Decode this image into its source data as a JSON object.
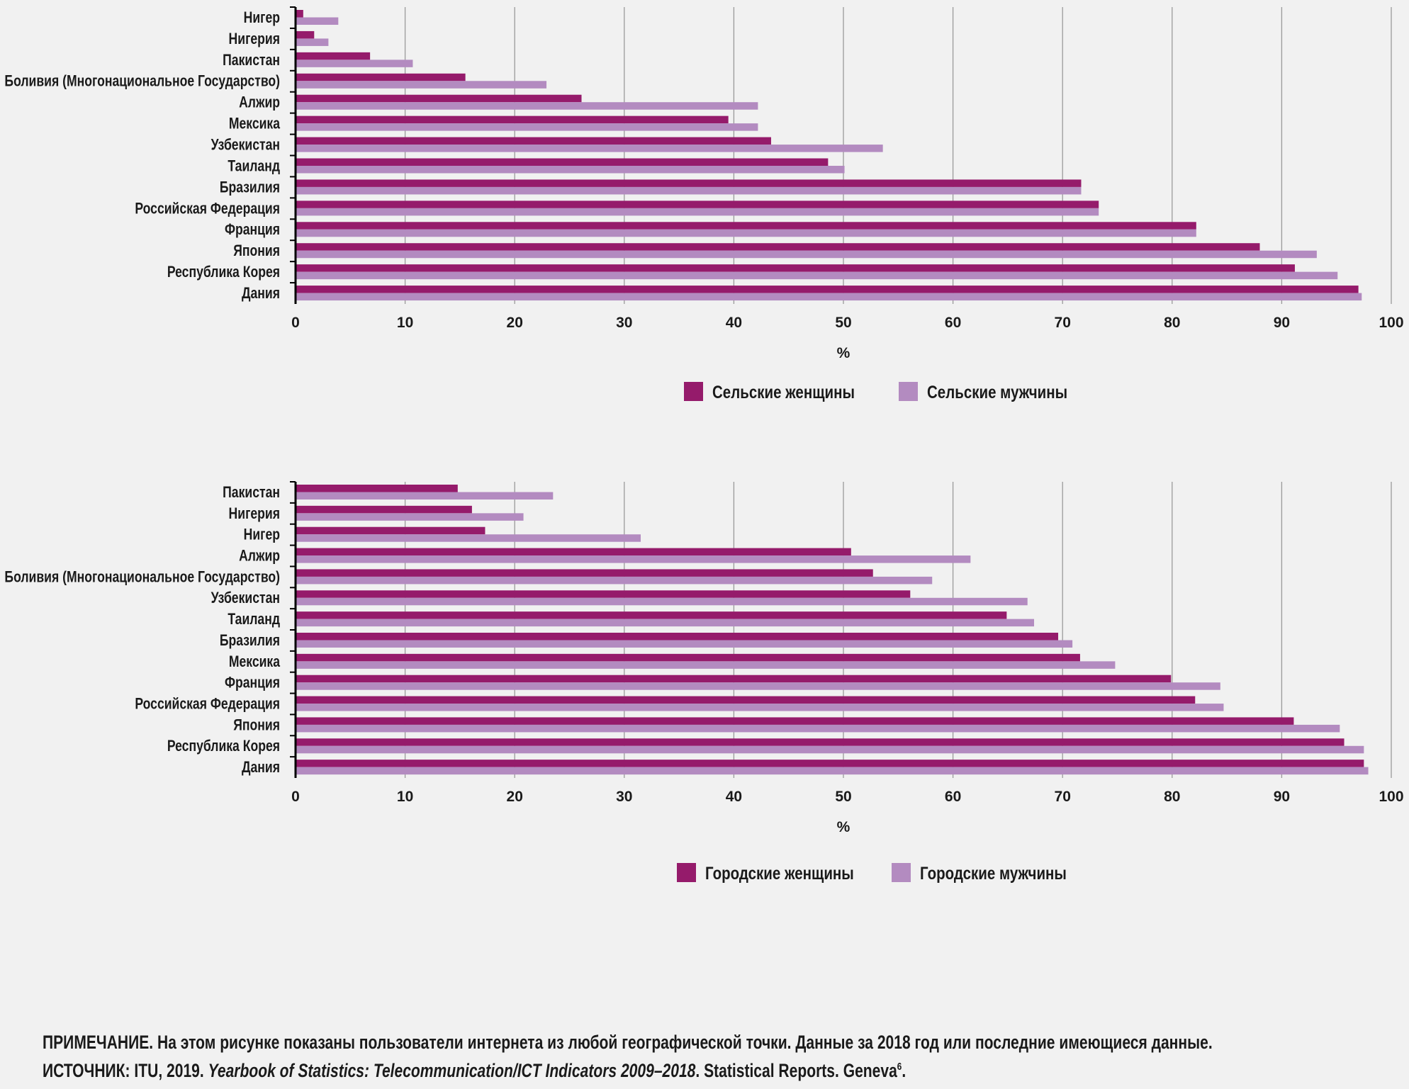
{
  "colors": {
    "women": "#951b6b",
    "men": "#b38bc0",
    "grid": "#9a9a9a",
    "background": "#f1f1f1"
  },
  "chart_data": [
    {
      "type": "bar",
      "orientation": "horizontal",
      "xlabel": "%",
      "xlim": [
        0,
        100
      ],
      "xticks": [
        "0",
        "10",
        "20",
        "30",
        "40",
        "50",
        "60",
        "70",
        "80",
        "90",
        "100"
      ],
      "grid": true,
      "legend_position": "bottom",
      "categories": [
        "Нигер",
        "Нигерия",
        "Пакистан",
        "Боливия (Многонациональное Государство)",
        "Алжир",
        "Мексика",
        "Узбекистан",
        "Таиланд",
        "Бразилия",
        "Российская Федерация",
        "Франция",
        "Япония",
        "Республика Корея",
        "Дания"
      ],
      "series": [
        {
          "name": "Сельские женщины",
          "values": [
            0.7,
            1.7,
            6.8,
            15.5,
            26.1,
            39.5,
            43.4,
            48.6,
            71.7,
            73.3,
            82.2,
            88.0,
            91.2,
            97.0
          ]
        },
        {
          "name": "Сельские мужчины",
          "values": [
            3.9,
            3.0,
            10.7,
            22.9,
            42.2,
            42.2,
            53.6,
            50.1,
            71.7,
            73.3,
            82.2,
            93.2,
            95.1,
            97.3
          ]
        }
      ]
    },
    {
      "type": "bar",
      "orientation": "horizontal",
      "xlabel": "%",
      "xlim": [
        0,
        100
      ],
      "xticks": [
        "0",
        "10",
        "20",
        "30",
        "40",
        "50",
        "60",
        "70",
        "80",
        "90",
        "100"
      ],
      "grid": true,
      "legend_position": "bottom",
      "categories": [
        "Пакистан",
        "Нигерия",
        "Нигер",
        "Алжир",
        "Боливия (Многонациональное Государство)",
        "Узбекистан",
        "Таиланд",
        "Бразилия",
        "Мексика",
        "Франция",
        "Российская Федерация",
        "Япония",
        "Республика Корея",
        "Дания"
      ],
      "series": [
        {
          "name": "Городские женщины",
          "values": [
            14.8,
            16.1,
            17.3,
            50.7,
            52.7,
            56.1,
            64.9,
            69.6,
            71.6,
            79.9,
            82.1,
            91.1,
            95.7,
            97.5
          ]
        },
        {
          "name": "Городские мужчины",
          "values": [
            23.5,
            20.8,
            31.5,
            61.6,
            58.1,
            66.8,
            67.4,
            70.9,
            74.8,
            84.4,
            84.7,
            95.3,
            97.5,
            97.9
          ]
        }
      ]
    }
  ],
  "footnote": {
    "note": "ПРИМЕЧАНИЕ. На этом рисунке показаны пользователи интернета из любой географической точки. Данные за 2018 год или последние имеющиеся данные.",
    "source_prefix": "ИСТОЧНИК: ITU, 2019. ",
    "source_title": "Yearbook of Statistics: Telecommunication/ICT Indicators 2009–2018",
    "source_suffix": ". Statistical Reports. Geneva",
    "source_sup": "6",
    "source_end": "."
  }
}
